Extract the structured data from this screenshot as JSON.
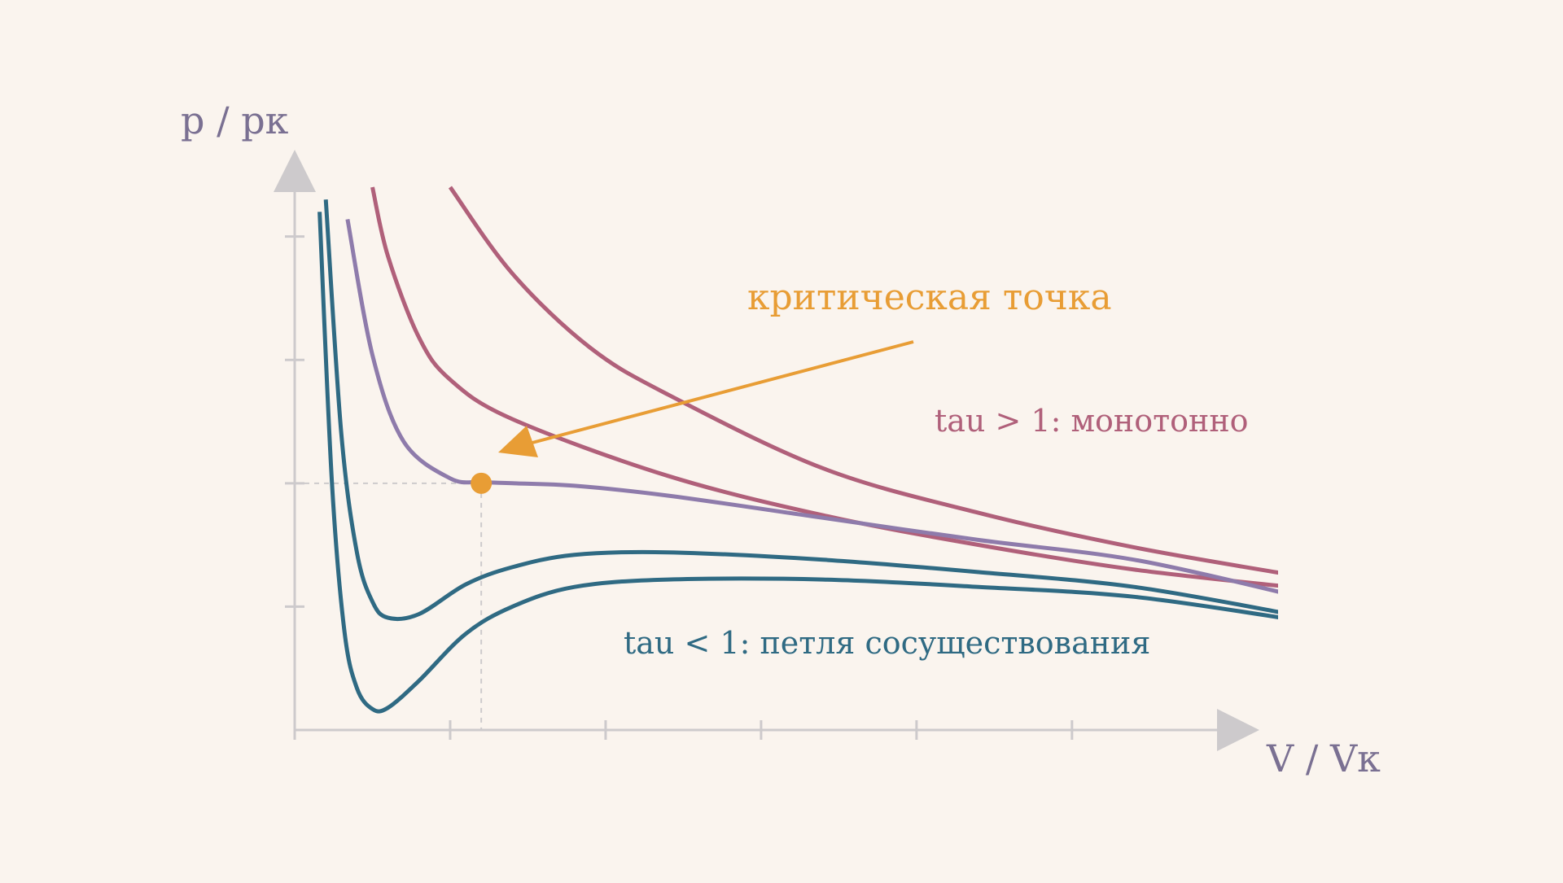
{
  "chart_data": {
    "type": "line",
    "title": "",
    "xlabel": "V / Vк",
    "ylabel": "p / pк",
    "xlim": [
      0.3,
      3.4
    ],
    "ylim": [
      0,
      2.2
    ],
    "xticks": [
      0.3,
      0.8,
      1.3,
      1.8,
      2.3,
      2.8,
      3.3
    ],
    "yticks": [
      0.5,
      1.0,
      1.5,
      2.0
    ],
    "grid": false,
    "colors": {
      "background": "#faf4ee",
      "axis": "#cdcacc",
      "axis_label": "#7a7092",
      "high_T": "#b0607a",
      "critical": "#8e7bab",
      "low_T": "#2f6a83",
      "critical_point": "#e89d35"
    },
    "series": [
      {
        "group": "high_T",
        "color": "#b0607a",
        "x": [
          0.8,
          1.0,
          1.25,
          1.5,
          2.0,
          2.5,
          3.0,
          3.5
        ],
        "y": [
          2.2,
          1.85,
          1.55,
          1.36,
          1.06,
          0.88,
          0.74,
          0.63
        ]
      },
      {
        "group": "high_T",
        "color": "#b0607a",
        "x": [
          0.55,
          0.6,
          0.7,
          0.8,
          1.0,
          1.5,
          2.0,
          2.5,
          3.0,
          3.5
        ],
        "y": [
          2.2,
          1.92,
          1.59,
          1.42,
          1.26,
          1.03,
          0.87,
          0.75,
          0.65,
          0.58
        ]
      },
      {
        "group": "critical",
        "color": "#8e7bab",
        "x": [
          0.47,
          0.55,
          0.65,
          0.8,
          0.9,
          1.0,
          1.2,
          1.5,
          2.0,
          2.5,
          3.0,
          3.5
        ],
        "y": [
          2.07,
          1.52,
          1.17,
          1.02,
          1.005,
          1.0,
          0.99,
          0.95,
          0.86,
          0.77,
          0.69,
          0.55
        ]
      },
      {
        "group": "low_T",
        "color": "#2f6a83",
        "x": [
          0.4,
          0.45,
          0.5,
          0.55,
          0.6,
          0.7,
          0.85,
          1.0,
          1.2,
          1.5,
          2.0,
          2.5,
          3.0,
          3.5
        ],
        "y": [
          2.15,
          1.2,
          0.72,
          0.52,
          0.455,
          0.47,
          0.59,
          0.66,
          0.71,
          0.72,
          0.69,
          0.64,
          0.58,
          0.47
        ]
      },
      {
        "group": "low_T",
        "color": "#2f6a83",
        "x": [
          0.38,
          0.42,
          0.46,
          0.5,
          0.55,
          0.6,
          0.7,
          0.85,
          1.0,
          1.2,
          1.5,
          2.0,
          2.5,
          3.0,
          3.5
        ],
        "y": [
          2.1,
          1.0,
          0.4,
          0.17,
          0.085,
          0.09,
          0.2,
          0.39,
          0.5,
          0.58,
          0.61,
          0.61,
          0.58,
          0.54,
          0.45
        ]
      }
    ],
    "critical_point": {
      "x": 0.9,
      "y": 1.0,
      "label": "критическая точка"
    },
    "annotations": [
      {
        "text": "tau > 1: монотонно",
        "color": "#b0607a"
      },
      {
        "text": "tau < 1: петля сосуществования",
        "color": "#2f6a83"
      }
    ]
  }
}
